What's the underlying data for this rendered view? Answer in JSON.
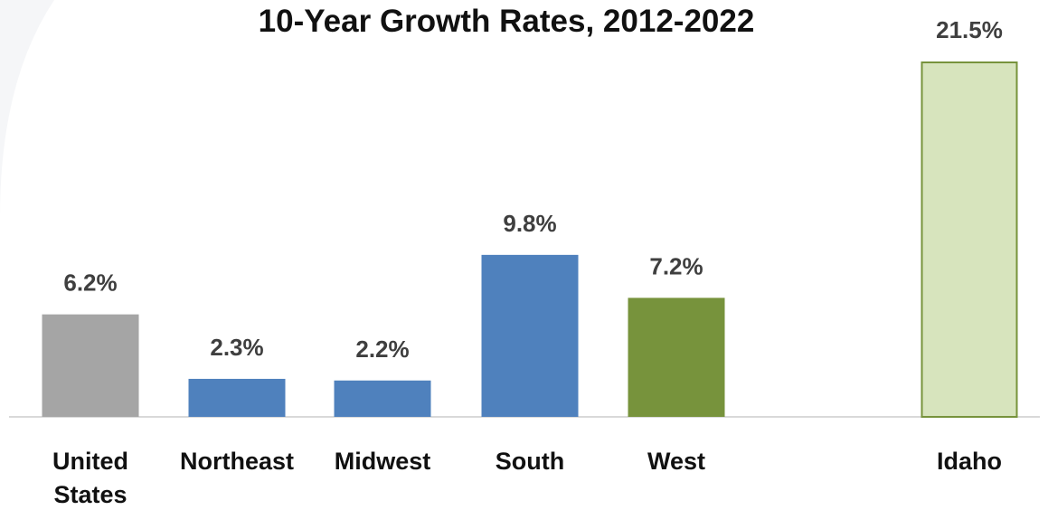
{
  "chart_data": {
    "type": "bar",
    "title": "10-Year Growth Rates, 2012-2022",
    "xlabel": "",
    "ylabel": "",
    "ylim": [
      0,
      21.5
    ],
    "grid": false,
    "legend": "none",
    "categories": [
      [
        "United",
        "States"
      ],
      [
        "Northeast"
      ],
      [
        "Midwest"
      ],
      [
        "South"
      ],
      [
        "West"
      ],
      [
        "Idaho"
      ]
    ],
    "values": [
      6.2,
      2.3,
      2.2,
      9.8,
      7.2,
      21.5
    ],
    "value_labels": [
      "6.2%",
      "2.3%",
      "2.2%",
      "9.8%",
      "7.2%",
      "21.5%"
    ],
    "bar_colors": [
      "#a5a5a5",
      "#4f81bd",
      "#4f81bd",
      "#4f81bd",
      "#77933c",
      "#d7e4bd"
    ],
    "bar_stroke_colors": [
      "none",
      "none",
      "none",
      "none",
      "none",
      "#77933c"
    ]
  }
}
